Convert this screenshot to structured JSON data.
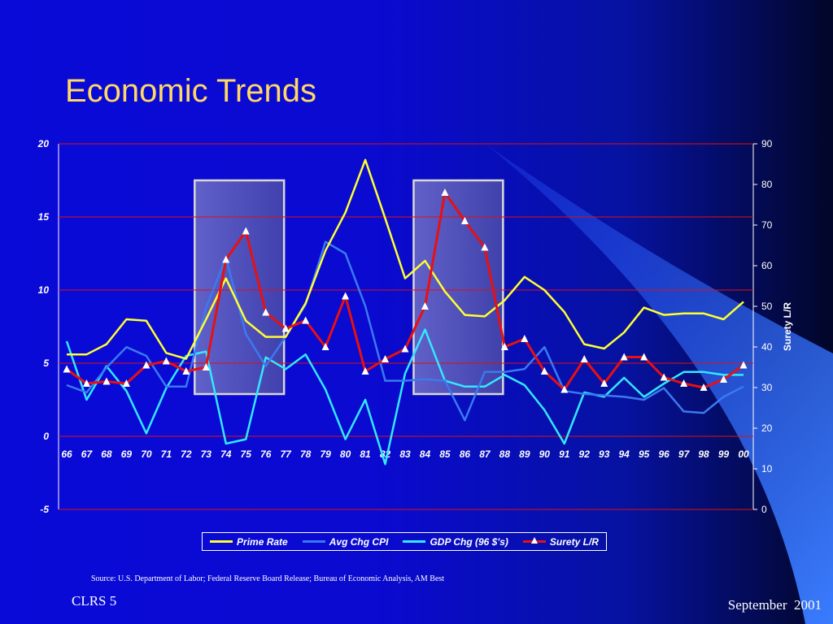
{
  "slide": {
    "title": "Economic Trends",
    "source": "Source:   U.S. Department of Labor; Federal Reserve Board Release; Bureau of Economic Analysis, AM Best",
    "footer_left": "CLRS 5",
    "footer_right": "September  2001"
  },
  "colors": {
    "background": "#0a0ad8",
    "title": "#ffd866",
    "gridline": "#e01010",
    "shaded_region": "#5a5ab0"
  },
  "chart_data": {
    "type": "line",
    "title": "",
    "xlabel": "",
    "ylabel": "",
    "y2label": "Surety L/R",
    "categories": [
      "66",
      "67",
      "68",
      "69",
      "70",
      "71",
      "72",
      "73",
      "74",
      "75",
      "76",
      "77",
      "78",
      "79",
      "80",
      "81",
      "82",
      "83",
      "84",
      "85",
      "86",
      "87",
      "88",
      "89",
      "90",
      "91",
      "92",
      "93",
      "94",
      "95",
      "96",
      "97",
      "98",
      "99",
      "00"
    ],
    "ylim": [
      -5,
      20
    ],
    "yticks": [
      -5,
      0,
      5,
      10,
      15,
      20
    ],
    "y2lim": [
      0,
      90
    ],
    "y2ticks": [
      0,
      10,
      20,
      30,
      40,
      50,
      60,
      70,
      80,
      90
    ],
    "grid": true,
    "legend_position": "bottom",
    "shaded_periods": [
      [
        "73",
        "77"
      ],
      [
        "84",
        "88"
      ]
    ],
    "series": [
      {
        "name": "Prime Rate",
        "axis": "left",
        "color": "#ffff33",
        "marker": "none",
        "values": [
          5.6,
          5.6,
          6.3,
          8.0,
          7.9,
          5.7,
          5.3,
          8.0,
          10.8,
          7.9,
          6.8,
          6.8,
          9.1,
          12.7,
          15.3,
          18.9,
          14.9,
          10.8,
          12.0,
          9.9,
          8.3,
          8.2,
          9.3,
          10.9,
          10.0,
          8.5,
          6.3,
          6.0,
          7.1,
          8.8,
          8.3,
          8.4,
          8.4,
          8.0,
          9.2
        ]
      },
      {
        "name": "Avg Chg CPI",
        "axis": "left",
        "color": "#3a7af0",
        "marker": "none",
        "values": [
          3.5,
          3.0,
          4.7,
          6.1,
          5.5,
          3.4,
          3.4,
          8.8,
          12.2,
          7.0,
          4.8,
          6.8,
          9.0,
          13.3,
          12.5,
          8.9,
          3.8,
          3.8,
          3.9,
          3.8,
          1.1,
          4.4,
          4.4,
          4.6,
          6.1,
          3.1,
          2.9,
          2.8,
          2.7,
          2.5,
          3.3,
          1.7,
          1.6,
          2.7,
          3.4
        ]
      },
      {
        "name": "GDP Chg (96 $'s)",
        "axis": "left",
        "color": "#33e8ff",
        "marker": "none",
        "values": [
          6.5,
          2.5,
          4.8,
          3.1,
          0.2,
          3.3,
          5.5,
          5.8,
          -0.5,
          -0.2,
          5.4,
          4.6,
          5.6,
          3.2,
          -0.2,
          2.5,
          -1.9,
          4.3,
          7.3,
          3.8,
          3.4,
          3.4,
          4.2,
          3.5,
          1.8,
          -0.5,
          3.0,
          2.7,
          4.0,
          2.7,
          3.6,
          4.4,
          4.4,
          4.2,
          4.2
        ]
      },
      {
        "name": "Surety L/R",
        "axis": "right",
        "color": "#e81010",
        "marker": "triangle",
        "values": [
          34.5,
          31.0,
          31.5,
          31.0,
          35.5,
          36.5,
          34.0,
          35.0,
          61.5,
          68.5,
          48.5,
          44.5,
          46.5,
          40.0,
          52.5,
          34.0,
          37.0,
          39.5,
          50.0,
          78.0,
          71.0,
          64.5,
          40.0,
          42.0,
          34.0,
          29.5,
          37.0,
          31.0,
          37.5,
          37.5,
          32.5,
          31.0,
          30.0,
          32.0,
          35.5
        ]
      }
    ]
  }
}
